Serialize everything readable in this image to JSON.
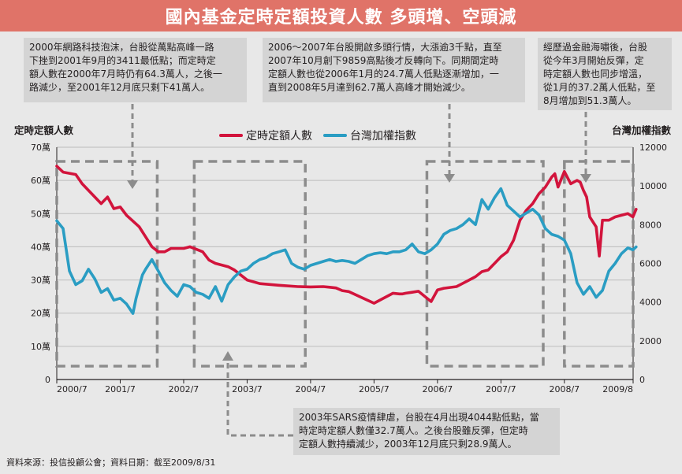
{
  "title": "國內基金定時定額投資人數 多頭增、空頭減",
  "notes": {
    "note1": [
      "2000年網路科技泡沫，台股從萬點高峰一路",
      "下挫到2001年9月的3411最低點；而定時定",
      "額人數在2000年7月時仍有64.3萬人，之後一",
      "路減少，至2001年12月底只剩下41萬人。"
    ],
    "note2": [
      "2006～2007年台股開啟多頭行情，大漲逾3千點，直至",
      "2007年10月創下9859高點後才反轉向下。同期間定時",
      "定額人數也從2006年1月的24.7萬人低點逐漸增加，一",
      "直到2008年5月達到62.7萬人高峰才開始減少。"
    ],
    "note3": [
      "經歷過金融海嘯後，台股",
      "從今年3月開始反彈，定",
      "時定額人數也同步增溫，",
      "從1月的37.2萬人低點，至",
      "8月增加到51.3萬人。"
    ],
    "note4": [
      "2003年SARS疫情肆虐，台股在4月出現4044點低點，當",
      "時定時定額人數僅32.7萬人。之後台股雖反彈，但定時",
      "定額人數持續減少，2003年12月底只剩28.9萬人。"
    ]
  },
  "source": "資料來源：投信投顧公會；資料日期：截至2009/8/31",
  "colors": {
    "red": "#d2143c",
    "blue": "#2a9dc3",
    "bg": "#e8e8e8",
    "title_bg": "#e07368",
    "dash": "#8c8c8c"
  },
  "chart_data": {
    "type": "line",
    "left_axis_title": "定時定額人數",
    "right_axis_title": "台灣加權指數",
    "left_ticks": [
      "70萬",
      "60萬",
      "50萬",
      "40萬",
      "30萬",
      "20萬",
      "10萬",
      "0"
    ],
    "right_ticks": [
      "12000",
      "10000",
      "8000",
      "6000",
      "4000",
      "2000",
      "0"
    ],
    "left_ylim": [
      0,
      70
    ],
    "right_ylim": [
      0,
      12000
    ],
    "x_ticks": [
      "2000/7",
      "2001/7",
      "2002/7",
      "2003/7",
      "2004/7",
      "2005/7",
      "2006/7",
      "2007/7",
      "2008/7",
      "2009/8"
    ],
    "x_range": [
      "2000/7",
      "2009/8"
    ],
    "legend": [
      "定時定額人數",
      "台灣加權指數"
    ],
    "legend_position": "top-center",
    "highlight_periods": [
      [
        "2000/7",
        "2002/2"
      ],
      [
        "2002/9",
        "2004/6"
      ],
      [
        "2006/5",
        "2008/3"
      ],
      [
        "2008/7",
        "2009/8"
      ]
    ],
    "series": [
      {
        "name": "定時定額人數",
        "axis": "left",
        "color": "#d2143c",
        "x": [
          2000.5,
          2000.6,
          2000.8,
          2000.9,
          2001.0,
          2001.2,
          2001.3,
          2001.4,
          2001.5,
          2001.6,
          2001.8,
          2001.9,
          2002.0,
          2002.1,
          2002.2,
          2002.3,
          2002.5,
          2002.6,
          2002.8,
          2002.9,
          2003.0,
          2003.2,
          2003.3,
          2003.5,
          2003.7,
          2004.0,
          2004.3,
          2004.5,
          2004.7,
          2004.8,
          2004.9,
          2004.95,
          2005.0,
          2005.1,
          2005.5,
          2005.8,
          2005.9,
          2005.95,
          2006.0,
          2006.1,
          2006.2,
          2006.4,
          2006.5,
          2006.6,
          2006.8,
          2006.9,
          2007.0,
          2007.1,
          2007.2,
          2007.3,
          2007.4,
          2007.5,
          2007.6,
          2007.7,
          2007.8,
          2007.9,
          2008.0,
          2008.1,
          2008.2,
          2008.3,
          2008.35,
          2008.4,
          2008.5,
          2008.6,
          2008.7,
          2008.75,
          2008.8,
          2008.85,
          2008.9,
          2009.0,
          2009.05,
          2009.1,
          2009.2,
          2009.3,
          2009.4,
          2009.5,
          2009.58,
          2009.63
        ],
        "values": [
          64.3,
          62.5,
          61.8,
          59,
          57,
          53,
          55,
          51.5,
          52,
          49.5,
          46,
          43,
          40,
          38.5,
          38.5,
          39.5,
          39.5,
          40,
          38.5,
          36,
          35,
          34,
          33,
          30,
          28.9,
          28.4,
          28,
          27.9,
          28,
          27.8,
          27.6,
          27.2,
          26.8,
          26.5,
          23,
          26,
          25.8,
          25.8,
          26,
          26.3,
          26.6,
          23.5,
          27,
          27.5,
          28,
          29,
          30,
          31,
          32.5,
          33,
          35,
          37,
          38.5,
          42,
          48,
          51,
          53,
          56,
          58,
          61,
          62,
          58,
          62.7,
          59,
          60,
          59.5,
          57,
          55,
          49,
          46,
          37.2,
          48,
          48,
          49,
          49.5,
          50,
          49,
          51.3
        ]
      },
      {
        "name": "台灣加權指數",
        "axis": "right",
        "color": "#2a9dc3",
        "x": [
          2000.5,
          2000.6,
          2000.7,
          2000.8,
          2000.9,
          2001.0,
          2001.1,
          2001.2,
          2001.3,
          2001.4,
          2001.5,
          2001.6,
          2001.7,
          2001.75,
          2001.85,
          2001.9,
          2002.0,
          2002.1,
          2002.2,
          2002.3,
          2002.4,
          2002.5,
          2002.6,
          2002.7,
          2002.8,
          2002.9,
          2003.0,
          2003.1,
          2003.2,
          2003.3,
          2003.4,
          2003.5,
          2003.6,
          2003.7,
          2003.8,
          2003.9,
          2004.0,
          2004.1,
          2004.2,
          2004.3,
          2004.4,
          2004.5,
          2004.6,
          2004.7,
          2004.8,
          2004.9,
          2005.0,
          2005.1,
          2005.2,
          2005.3,
          2005.4,
          2005.5,
          2005.6,
          2005.7,
          2005.8,
          2005.9,
          2006.0,
          2006.1,
          2006.2,
          2006.3,
          2006.4,
          2006.5,
          2006.6,
          2006.7,
          2006.8,
          2006.9,
          2007.0,
          2007.1,
          2007.2,
          2007.3,
          2007.4,
          2007.5,
          2007.6,
          2007.7,
          2007.8,
          2007.9,
          2008.0,
          2008.1,
          2008.2,
          2008.3,
          2008.4,
          2008.5,
          2008.6,
          2008.7,
          2008.8,
          2008.9,
          2009.0,
          2009.1,
          2009.2,
          2009.3,
          2009.4,
          2009.5,
          2009.58,
          2009.63
        ],
        "values": [
          8200,
          7800,
          5600,
          4900,
          5100,
          5700,
          5200,
          4500,
          4700,
          4100,
          4200,
          3900,
          3411,
          4200,
          5400,
          5700,
          6200,
          5600,
          5000,
          4600,
          4300,
          4900,
          4800,
          4500,
          4400,
          4200,
          4800,
          4044,
          4900,
          5300,
          5600,
          5700,
          6000,
          6200,
          6300,
          6500,
          6600,
          6700,
          6000,
          5800,
          5700,
          5900,
          6000,
          6100,
          6200,
          6100,
          6150,
          6100,
          6000,
          6200,
          6400,
          6500,
          6550,
          6500,
          6600,
          6600,
          6700,
          7000,
          6600,
          6500,
          6700,
          7000,
          7500,
          7700,
          7800,
          8000,
          8300,
          8000,
          9300,
          8800,
          9400,
          9859,
          9000,
          8700,
          8400,
          8600,
          8800,
          8500,
          7800,
          7500,
          7400,
          7200,
          6500,
          5000,
          4400,
          4800,
          4247,
          4600,
          5600,
          6000,
          6500,
          6800,
          6700,
          6850
        ]
      }
    ]
  }
}
